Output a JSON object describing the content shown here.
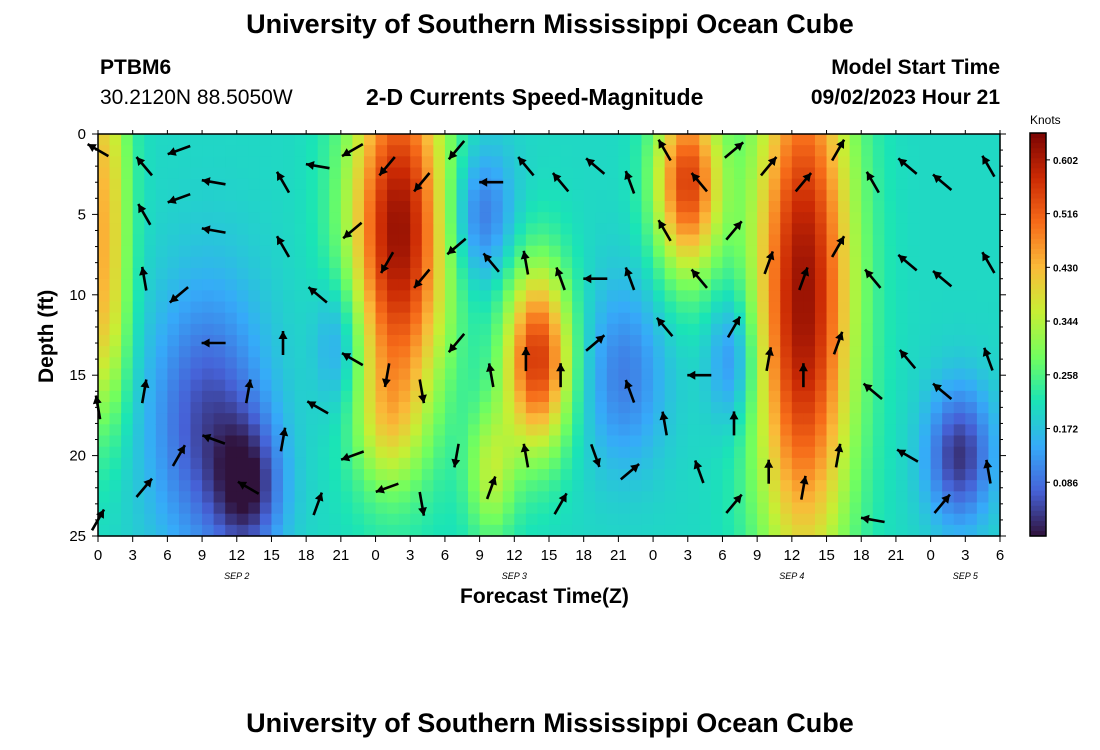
{
  "header": {
    "title_top": "University of Southern Mississippi Ocean Cube",
    "title_bottom": "University of Southern Mississippi Ocean Cube",
    "station_id": "PTBM6",
    "station_coords": "30.2120N  88.5050W",
    "plot_title": "2-D Currents Speed-Magnitude",
    "model_label": "Model Start Time",
    "model_time": "09/02/2023 Hour 21"
  },
  "colors": {
    "colormap": [
      "#30123b",
      "#4662d7",
      "#36aaf9",
      "#1ae4b6",
      "#72fe5e",
      "#c7ef34",
      "#faba39",
      "#f66b19",
      "#cb2a04",
      "#7a0403"
    ],
    "arrow": "#000000"
  },
  "chart_data": {
    "type": "heatmap",
    "title": "2-D Currents Speed-Magnitude",
    "xlabel": "Forecast Time(Z)",
    "ylabel": "Depth (ft)",
    "x_ticks": [
      "0",
      "3",
      "6",
      "9",
      "12",
      "15",
      "18",
      "21",
      "0",
      "3",
      "6",
      "9",
      "12",
      "15",
      "18",
      "21",
      "0",
      "3",
      "6",
      "9",
      "12",
      "15",
      "18",
      "21",
      "0",
      "3",
      "6"
    ],
    "x_range_hours": [
      0,
      78
    ],
    "day_labels": [
      {
        "label": "SEP 2",
        "hour": 12
      },
      {
        "label": "SEP 3",
        "hour": 36
      },
      {
        "label": "SEP 4",
        "hour": 60
      },
      {
        "label": "SEP 5",
        "hour": 75
      }
    ],
    "y_ticks": [
      "0",
      "5",
      "10",
      "15",
      "20",
      "25"
    ],
    "y_range_ft": [
      0,
      25
    ],
    "colorbar": {
      "label": "Knots",
      "ticks": [
        "0.602",
        "0.516",
        "0.430",
        "0.344",
        "0.258",
        "0.172",
        "0.086"
      ],
      "vmin": 0.0,
      "vmax": 0.645
    },
    "speed_features_knots": [
      {
        "hour": 0.5,
        "depth": 2,
        "speed": 0.4,
        "sh": 1.5,
        "sd": 6
      },
      {
        "hour": 0.5,
        "depth": 12,
        "speed": 0.36,
        "sh": 1.5,
        "sd": 5
      },
      {
        "hour": 9.5,
        "depth": 18,
        "speed": 0.05,
        "sh": 3.5,
        "sd": 6
      },
      {
        "hour": 13,
        "depth": 22,
        "speed": 0.05,
        "sh": 2,
        "sd": 3
      },
      {
        "hour": 21,
        "depth": 13,
        "speed": 0.1,
        "sh": 1.5,
        "sd": 3
      },
      {
        "hour": 26,
        "depth": 6,
        "speed": 0.62,
        "sh": 3,
        "sd": 8
      },
      {
        "hour": 25,
        "depth": 18,
        "speed": 0.3,
        "sh": 2,
        "sd": 3
      },
      {
        "hour": 33,
        "depth": 5,
        "speed": 0.08,
        "sh": 2,
        "sd": 3
      },
      {
        "hour": 34,
        "depth": 21,
        "speed": 0.34,
        "sh": 1.5,
        "sd": 3
      },
      {
        "hour": 38,
        "depth": 14,
        "speed": 0.56,
        "sh": 2,
        "sd": 4
      },
      {
        "hour": 45.5,
        "depth": 15,
        "speed": 0.1,
        "sh": 2.5,
        "sd": 4
      },
      {
        "hour": 51,
        "depth": 3,
        "speed": 0.55,
        "sh": 2,
        "sd": 4
      },
      {
        "hour": 55,
        "depth": 14,
        "speed": 0.09,
        "sh": 1.5,
        "sd": 3
      },
      {
        "hour": 61,
        "depth": 10,
        "speed": 0.62,
        "sh": 3,
        "sd": 12
      },
      {
        "hour": 74.5,
        "depth": 20,
        "speed": 0.03,
        "sh": 2,
        "sd": 3
      }
    ],
    "arrows": [
      {
        "hour": 0,
        "depth": 1,
        "dir": 300
      },
      {
        "hour": 0,
        "depth": 17,
        "dir": 350
      },
      {
        "hour": 0,
        "depth": 24,
        "dir": 30
      },
      {
        "hour": 4,
        "depth": 2,
        "dir": 320
      },
      {
        "hour": 4,
        "depth": 5,
        "dir": 330
      },
      {
        "hour": 4,
        "depth": 9,
        "dir": 350
      },
      {
        "hour": 4,
        "depth": 16,
        "dir": 10
      },
      {
        "hour": 4,
        "depth": 22,
        "dir": 40
      },
      {
        "hour": 7,
        "depth": 1,
        "dir": 250
      },
      {
        "hour": 7,
        "depth": 4,
        "dir": 250
      },
      {
        "hour": 7,
        "depth": 10,
        "dir": 230
      },
      {
        "hour": 7,
        "depth": 20,
        "dir": 30
      },
      {
        "hour": 10,
        "depth": 3,
        "dir": 280
      },
      {
        "hour": 10,
        "depth": 6,
        "dir": 280
      },
      {
        "hour": 10,
        "depth": 13,
        "dir": 270
      },
      {
        "hour": 10,
        "depth": 19,
        "dir": 290
      },
      {
        "hour": 13,
        "depth": 16,
        "dir": 10
      },
      {
        "hour": 13,
        "depth": 22,
        "dir": 300
      },
      {
        "hour": 16,
        "depth": 3,
        "dir": 330
      },
      {
        "hour": 16,
        "depth": 7,
        "dir": 330
      },
      {
        "hour": 16,
        "depth": 13,
        "dir": 0
      },
      {
        "hour": 16,
        "depth": 19,
        "dir": 10
      },
      {
        "hour": 19,
        "depth": 2,
        "dir": 280
      },
      {
        "hour": 19,
        "depth": 10,
        "dir": 310
      },
      {
        "hour": 19,
        "depth": 17,
        "dir": 300
      },
      {
        "hour": 19,
        "depth": 23,
        "dir": 20
      },
      {
        "hour": 22,
        "depth": 1,
        "dir": 240
      },
      {
        "hour": 22,
        "depth": 6,
        "dir": 230
      },
      {
        "hour": 22,
        "depth": 14,
        "dir": 300
      },
      {
        "hour": 22,
        "depth": 20,
        "dir": 250
      },
      {
        "hour": 25,
        "depth": 2,
        "dir": 220
      },
      {
        "hour": 25,
        "depth": 8,
        "dir": 210
      },
      {
        "hour": 25,
        "depth": 15,
        "dir": 190
      },
      {
        "hour": 25,
        "depth": 22,
        "dir": 250
      },
      {
        "hour": 28,
        "depth": 3,
        "dir": 220
      },
      {
        "hour": 28,
        "depth": 9,
        "dir": 220
      },
      {
        "hour": 28,
        "depth": 16,
        "dir": 170
      },
      {
        "hour": 28,
        "depth": 23,
        "dir": 170
      },
      {
        "hour": 31,
        "depth": 1,
        "dir": 220
      },
      {
        "hour": 31,
        "depth": 7,
        "dir": 230
      },
      {
        "hour": 31,
        "depth": 13,
        "dir": 220
      },
      {
        "hour": 31,
        "depth": 20,
        "dir": 190
      },
      {
        "hour": 34,
        "depth": 3,
        "dir": 270
      },
      {
        "hour": 34,
        "depth": 8,
        "dir": 320
      },
      {
        "hour": 34,
        "depth": 15,
        "dir": 350
      },
      {
        "hour": 34,
        "depth": 22,
        "dir": 20
      },
      {
        "hour": 37,
        "depth": 2,
        "dir": 320
      },
      {
        "hour": 37,
        "depth": 8,
        "dir": 350
      },
      {
        "hour": 37,
        "depth": 14,
        "dir": 0
      },
      {
        "hour": 37,
        "depth": 20,
        "dir": 350
      },
      {
        "hour": 40,
        "depth": 3,
        "dir": 320
      },
      {
        "hour": 40,
        "depth": 9,
        "dir": 340
      },
      {
        "hour": 40,
        "depth": 15,
        "dir": 0
      },
      {
        "hour": 40,
        "depth": 23,
        "dir": 30
      },
      {
        "hour": 43,
        "depth": 2,
        "dir": 310
      },
      {
        "hour": 43,
        "depth": 9,
        "dir": 270
      },
      {
        "hour": 43,
        "depth": 13,
        "dir": 50
      },
      {
        "hour": 43,
        "depth": 20,
        "dir": 160
      },
      {
        "hour": 46,
        "depth": 3,
        "dir": 340
      },
      {
        "hour": 46,
        "depth": 9,
        "dir": 340
      },
      {
        "hour": 46,
        "depth": 16,
        "dir": 340
      },
      {
        "hour": 46,
        "depth": 21,
        "dir": 50
      },
      {
        "hour": 49,
        "depth": 1,
        "dir": 330
      },
      {
        "hour": 49,
        "depth": 6,
        "dir": 330
      },
      {
        "hour": 49,
        "depth": 12,
        "dir": 320
      },
      {
        "hour": 49,
        "depth": 18,
        "dir": 350
      },
      {
        "hour": 52,
        "depth": 3,
        "dir": 320
      },
      {
        "hour": 52,
        "depth": 9,
        "dir": 320
      },
      {
        "hour": 52,
        "depth": 15,
        "dir": 270
      },
      {
        "hour": 52,
        "depth": 21,
        "dir": 340
      },
      {
        "hour": 55,
        "depth": 1,
        "dir": 50
      },
      {
        "hour": 55,
        "depth": 6,
        "dir": 40
      },
      {
        "hour": 55,
        "depth": 12,
        "dir": 30
      },
      {
        "hour": 55,
        "depth": 18,
        "dir": 0
      },
      {
        "hour": 55,
        "depth": 23,
        "dir": 40
      },
      {
        "hour": 58,
        "depth": 2,
        "dir": 40
      },
      {
        "hour": 58,
        "depth": 8,
        "dir": 20
      },
      {
        "hour": 58,
        "depth": 14,
        "dir": 10
      },
      {
        "hour": 58,
        "depth": 21,
        "dir": 0
      },
      {
        "hour": 61,
        "depth": 3,
        "dir": 40
      },
      {
        "hour": 61,
        "depth": 9,
        "dir": 20
      },
      {
        "hour": 61,
        "depth": 15,
        "dir": 0
      },
      {
        "hour": 61,
        "depth": 22,
        "dir": 10
      },
      {
        "hour": 64,
        "depth": 1,
        "dir": 30
      },
      {
        "hour": 64,
        "depth": 7,
        "dir": 30
      },
      {
        "hour": 64,
        "depth": 13,
        "dir": 20
      },
      {
        "hour": 64,
        "depth": 20,
        "dir": 10
      },
      {
        "hour": 67,
        "depth": 3,
        "dir": 330
      },
      {
        "hour": 67,
        "depth": 9,
        "dir": 320
      },
      {
        "hour": 67,
        "depth": 16,
        "dir": 310
      },
      {
        "hour": 67,
        "depth": 24,
        "dir": 280
      },
      {
        "hour": 70,
        "depth": 2,
        "dir": 310
      },
      {
        "hour": 70,
        "depth": 8,
        "dir": 310
      },
      {
        "hour": 70,
        "depth": 14,
        "dir": 320
      },
      {
        "hour": 70,
        "depth": 20,
        "dir": 300
      },
      {
        "hour": 73,
        "depth": 3,
        "dir": 310
      },
      {
        "hour": 73,
        "depth": 9,
        "dir": 310
      },
      {
        "hour": 73,
        "depth": 16,
        "dir": 310
      },
      {
        "hour": 73,
        "depth": 23,
        "dir": 40
      },
      {
        "hour": 77,
        "depth": 2,
        "dir": 330
      },
      {
        "hour": 77,
        "depth": 8,
        "dir": 330
      },
      {
        "hour": 77,
        "depth": 14,
        "dir": 340
      },
      {
        "hour": 77,
        "depth": 21,
        "dir": 350
      }
    ]
  }
}
